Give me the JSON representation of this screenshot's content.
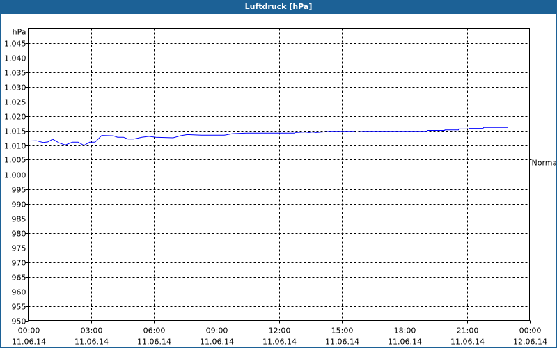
{
  "window": {
    "title": "Luftdruck [hPa]"
  },
  "chart_data": {
    "type": "line",
    "title": "Luftdruck [hPa]",
    "ylabel": "hPa",
    "ylim": [
      950,
      1050
    ],
    "yticks": [
      950,
      955,
      960,
      965,
      970,
      975,
      980,
      985,
      990,
      995,
      1000,
      1005,
      1010,
      1015,
      1020,
      1025,
      1030,
      1035,
      1040,
      1045
    ],
    "ytick_labels": [
      "950",
      "955",
      "960",
      "965",
      "970",
      "975",
      "980",
      "985",
      "990",
      "995",
      "1.000",
      "1.005",
      "1.010",
      "1.015",
      "1.020",
      "1.025",
      "1.030",
      "1.035",
      "1.040",
      "1.045"
    ],
    "xlim_hours": [
      0,
      24
    ],
    "xticks": [
      {
        "time": "00:00",
        "date": "11.06.14"
      },
      {
        "time": "03:00",
        "date": "11.06.14"
      },
      {
        "time": "06:00",
        "date": "11.06.14"
      },
      {
        "time": "09:00",
        "date": "11.06.14"
      },
      {
        "time": "12:00",
        "date": "11.06.14"
      },
      {
        "time": "15:00",
        "date": "11.06.14"
      },
      {
        "time": "18:00",
        "date": "11.06.14"
      },
      {
        "time": "21:00",
        "date": "11.06.14"
      },
      {
        "time": "00:00",
        "date": "12.06.14"
      }
    ],
    "grid": true,
    "reference_marker": {
      "label": "Normal",
      "value": 1005
    },
    "series_color": "#0000ff",
    "series": [
      {
        "x_hours": [
          0,
          0.39,
          0.72,
          0.94,
          1.17,
          1.5,
          1.78,
          2.11,
          2.39,
          2.67,
          2.94,
          3.2,
          3.52,
          4.08,
          4.28,
          4.56,
          4.78,
          5.06,
          5.44,
          5.78,
          6.11,
          6.94,
          7.28,
          7.61,
          8.28,
          9.39,
          9.78,
          10.44,
          12,
          12.76,
          12.78,
          13.28,
          13.44,
          13.6,
          13.78,
          14.1,
          14.44,
          15.6,
          15.67,
          16.1,
          19.1,
          19.11,
          19.94,
          19.95,
          20.6,
          20.61,
          21.1,
          21.11,
          21.78,
          21.79,
          22.94,
          22.95,
          23.83
        ],
        "values": [
          1011.4,
          1011.5,
          1010.9,
          1011.1,
          1012,
          1010.7,
          1010.05,
          1011,
          1011,
          1009.9,
          1011,
          1011,
          1013.3,
          1013.2,
          1012.7,
          1012.7,
          1012.1,
          1012.1,
          1012.7,
          1013,
          1012.7,
          1012.5,
          1013.2,
          1013.6,
          1013.4,
          1013.4,
          1013.9,
          1014.1,
          1014.1,
          1014.1,
          1014.3,
          1014.5,
          1014.3,
          1014.5,
          1014.3,
          1014.5,
          1014.7,
          1014.7,
          1014.5,
          1014.7,
          1014.7,
          1015,
          1015,
          1015.2,
          1015.2,
          1015.5,
          1015.5,
          1015.7,
          1015.7,
          1016,
          1016,
          1016.2,
          1016.2
        ]
      }
    ]
  }
}
